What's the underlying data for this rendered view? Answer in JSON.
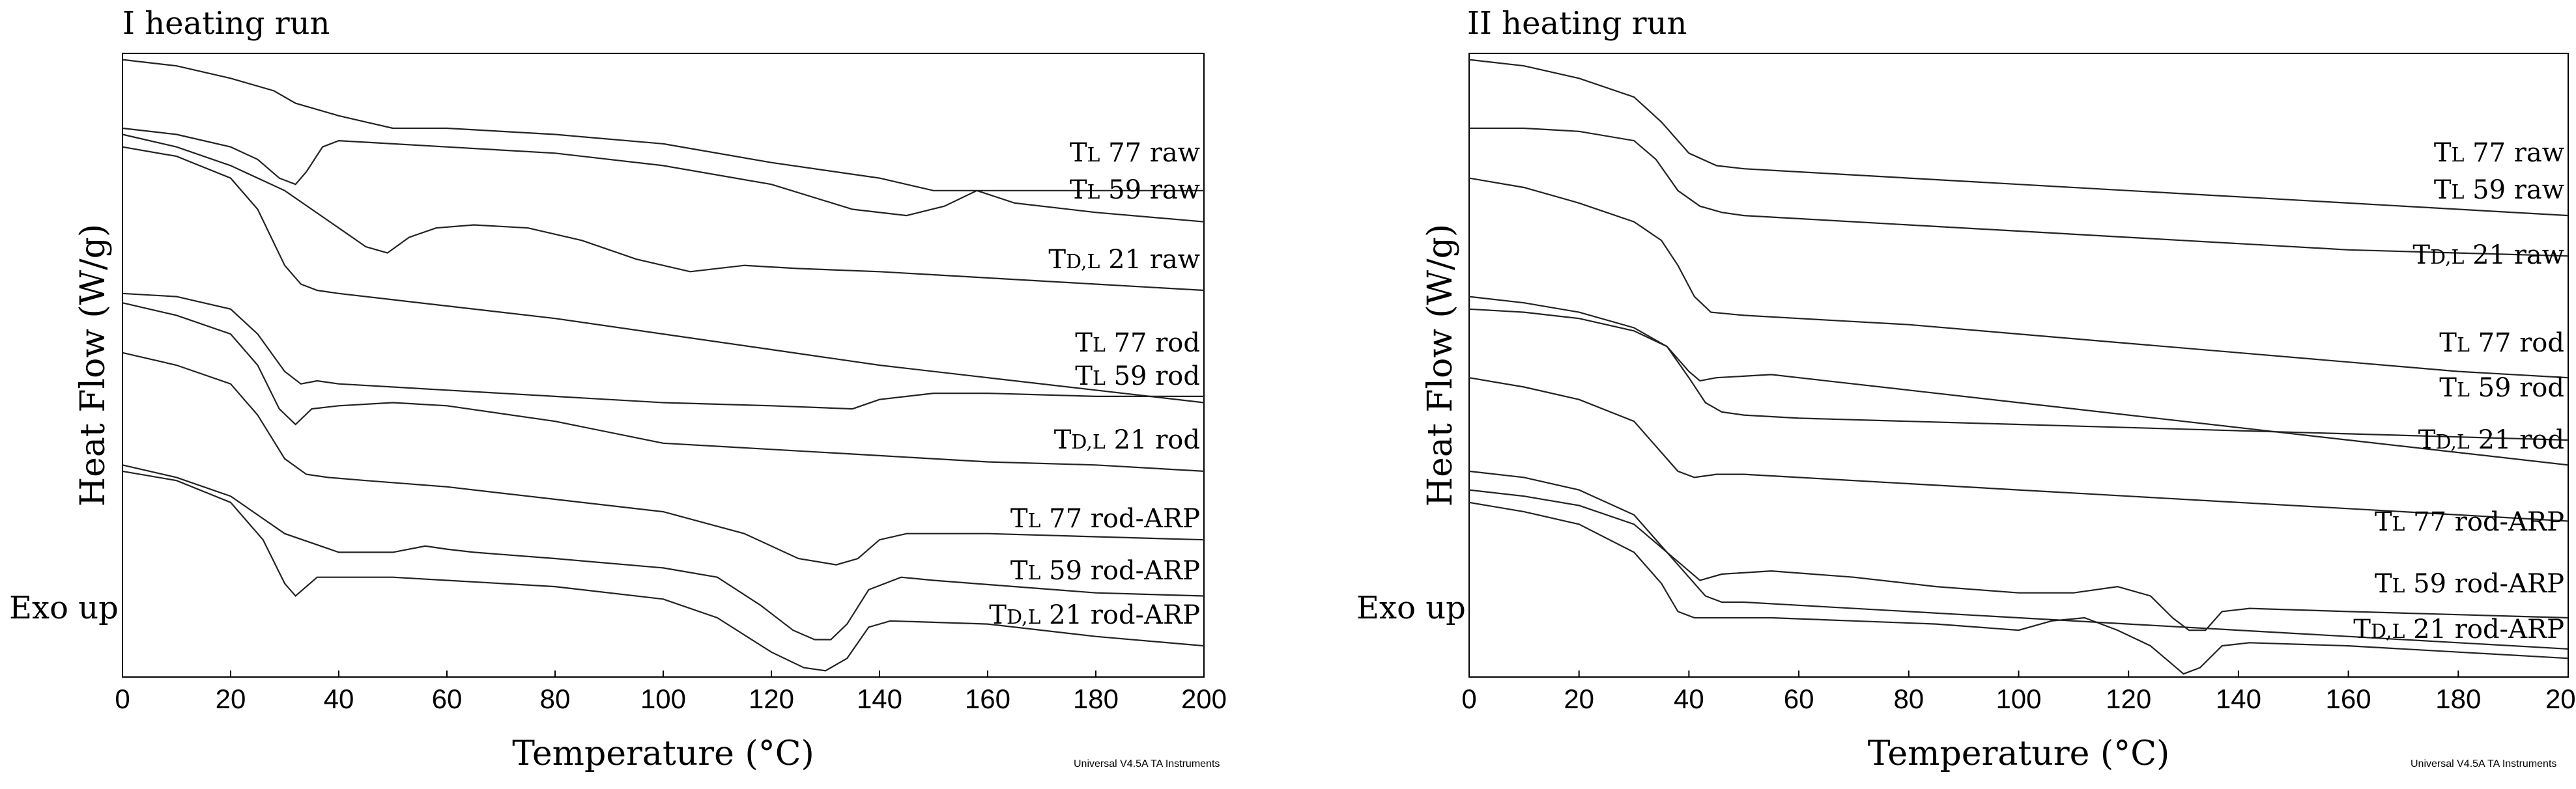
{
  "chart_data": [
    {
      "type": "line",
      "title": "I heating run",
      "xlabel": "Temperature (°C)",
      "ylabel": "Heat Flow (W/g)",
      "annotation": "Exo up",
      "footer": "Universal V4.5A TA Instruments",
      "xlim": [
        0,
        200
      ],
      "ylim": [
        0,
        10
      ],
      "xticks": [
        0,
        20,
        40,
        60,
        80,
        100,
        120,
        140,
        160,
        180,
        200
      ],
      "series": [
        {
          "name": "TL 77 raw",
          "label_main": "T",
          "label_sub": "L",
          "label_rest": " 77 raw",
          "x": [
            0,
            10,
            20,
            28,
            32,
            36,
            40,
            45,
            50,
            60,
            80,
            100,
            120,
            140,
            150,
            160,
            180,
            200
          ],
          "y": [
            9.9,
            9.8,
            9.6,
            9.4,
            9.2,
            9.1,
            9.0,
            8.9,
            8.8,
            8.8,
            8.7,
            8.55,
            8.25,
            8.0,
            7.8,
            7.8,
            7.8,
            7.8
          ]
        },
        {
          "name": "TL 59 raw",
          "label_main": "T",
          "label_sub": "L",
          "label_rest": " 59 raw",
          "x": [
            0,
            10,
            20,
            25,
            29,
            32,
            34,
            37,
            40,
            50,
            60,
            80,
            100,
            120,
            135,
            145,
            152,
            158,
            165,
            180,
            200
          ],
          "y": [
            8.8,
            8.7,
            8.5,
            8.3,
            8.0,
            7.9,
            8.1,
            8.5,
            8.6,
            8.55,
            8.5,
            8.4,
            8.2,
            7.9,
            7.5,
            7.4,
            7.55,
            7.8,
            7.6,
            7.45,
            7.3
          ]
        },
        {
          "name": "TD,L 21 raw",
          "label_main": "T",
          "label_sub": "D,L",
          "label_rest": " 21 raw",
          "x": [
            0,
            10,
            20,
            30,
            40,
            45,
            49,
            53,
            58,
            65,
            75,
            85,
            95,
            105,
            115,
            125,
            140,
            160,
            180,
            200
          ],
          "y": [
            8.7,
            8.5,
            8.2,
            7.8,
            7.2,
            6.9,
            6.8,
            7.05,
            7.2,
            7.25,
            7.2,
            7.0,
            6.7,
            6.5,
            6.6,
            6.55,
            6.5,
            6.4,
            6.3,
            6.2
          ]
        },
        {
          "name": "TL 77 rod",
          "label_main": "T",
          "label_sub": "L",
          "label_rest": " 77 rod",
          "x": [
            0,
            10,
            20,
            25,
            30,
            33,
            36,
            40,
            50,
            60,
            80,
            100,
            120,
            140,
            160,
            180,
            200
          ],
          "y": [
            8.5,
            8.35,
            8.0,
            7.5,
            6.6,
            6.3,
            6.2,
            6.15,
            6.05,
            5.95,
            5.75,
            5.5,
            5.25,
            5.0,
            4.8,
            4.6,
            4.4
          ]
        },
        {
          "name": "TL 59 rod",
          "label_main": "T",
          "label_sub": "L",
          "label_rest": " 59 rod",
          "x": [
            0,
            10,
            20,
            25,
            30,
            33,
            36,
            40,
            60,
            80,
            100,
            120,
            135,
            140,
            150,
            160,
            180,
            200
          ],
          "y": [
            6.15,
            6.1,
            5.9,
            5.5,
            4.9,
            4.7,
            4.75,
            4.7,
            4.6,
            4.5,
            4.4,
            4.35,
            4.3,
            4.45,
            4.55,
            4.55,
            4.5,
            4.5
          ]
        },
        {
          "name": "TD,L 21 rod",
          "label_main": "T",
          "label_sub": "D,L",
          "label_rest": " 21 rod",
          "x": [
            0,
            10,
            20,
            25,
            29,
            32,
            35,
            40,
            50,
            60,
            80,
            100,
            120,
            140,
            160,
            180,
            200
          ],
          "y": [
            6.0,
            5.8,
            5.5,
            5.0,
            4.3,
            4.05,
            4.3,
            4.35,
            4.4,
            4.35,
            4.1,
            3.75,
            3.65,
            3.55,
            3.45,
            3.4,
            3.3
          ]
        },
        {
          "name": "TL 77 rod-ARP",
          "label_main": "T",
          "label_sub": "L",
          "label_rest": " 77 rod-ARP",
          "x": [
            0,
            10,
            20,
            25,
            30,
            34,
            38,
            45,
            60,
            80,
            100,
            115,
            125,
            132,
            136,
            140,
            145,
            160,
            180,
            200
          ],
          "y": [
            5.2,
            5.0,
            4.7,
            4.2,
            3.5,
            3.25,
            3.2,
            3.15,
            3.05,
            2.85,
            2.65,
            2.3,
            1.9,
            1.8,
            1.9,
            2.2,
            2.3,
            2.3,
            2.25,
            2.2
          ]
        },
        {
          "name": "TL 59 rod-ARP",
          "label_main": "T",
          "label_sub": "L",
          "label_rest": " 59 rod-ARP",
          "x": [
            0,
            10,
            20,
            30,
            40,
            50,
            56,
            60,
            65,
            80,
            100,
            110,
            118,
            124,
            128,
            131,
            134,
            138,
            144,
            150,
            165,
            180,
            200
          ],
          "y": [
            3.4,
            3.2,
            2.9,
            2.3,
            2.0,
            2.0,
            2.1,
            2.05,
            2.0,
            1.9,
            1.75,
            1.6,
            1.15,
            0.75,
            0.6,
            0.6,
            0.85,
            1.4,
            1.6,
            1.55,
            1.45,
            1.35,
            1.3
          ]
        },
        {
          "name": "TD,L 21 rod-ARP",
          "label_main": "T",
          "label_sub": "D,L",
          "label_rest": " 21 rod-ARP",
          "x": [
            0,
            10,
            20,
            26,
            30,
            32,
            36,
            40,
            50,
            60,
            80,
            100,
            110,
            120,
            126,
            130,
            134,
            138,
            142,
            160,
            180,
            200
          ],
          "y": [
            3.3,
            3.15,
            2.8,
            2.2,
            1.5,
            1.3,
            1.6,
            1.6,
            1.6,
            1.55,
            1.45,
            1.25,
            0.95,
            0.4,
            0.15,
            0.1,
            0.3,
            0.8,
            0.9,
            0.85,
            0.65,
            0.5
          ]
        }
      ]
    },
    {
      "type": "line",
      "title": "II heating run",
      "xlabel": "Temperature (°C)",
      "ylabel": "Heat Flow (W/g)",
      "annotation": "Exo up",
      "footer": "Universal V4.5A TA Instruments",
      "xlim": [
        0,
        200
      ],
      "ylim": [
        0,
        10
      ],
      "xticks": [
        0,
        20,
        40,
        60,
        80,
        100,
        120,
        140,
        160,
        180,
        200
      ],
      "series": [
        {
          "name": "TL 77 raw",
          "label_main": "T",
          "label_sub": "L",
          "label_rest": " 77 raw",
          "x": [
            0,
            10,
            20,
            30,
            35,
            40,
            45,
            50,
            60,
            80,
            100,
            120,
            140,
            160,
            180,
            200
          ],
          "y": [
            9.9,
            9.8,
            9.6,
            9.3,
            8.9,
            8.4,
            8.2,
            8.15,
            8.1,
            8.0,
            7.9,
            7.8,
            7.7,
            7.6,
            7.5,
            7.4
          ]
        },
        {
          "name": "TL 59 raw",
          "label_main": "T",
          "label_sub": "L",
          "label_rest": " 59 raw",
          "x": [
            0,
            10,
            20,
            30,
            34,
            38,
            42,
            46,
            50,
            60,
            80,
            100,
            120,
            140,
            160,
            180,
            200
          ],
          "y": [
            8.8,
            8.8,
            8.75,
            8.6,
            8.3,
            7.8,
            7.55,
            7.45,
            7.4,
            7.35,
            7.25,
            7.15,
            7.05,
            6.95,
            6.85,
            6.8,
            6.75
          ]
        },
        {
          "name": "TD,L 21 raw",
          "label_main": "T",
          "label_sub": "D,L",
          "label_rest": " 21 raw",
          "x": [
            0,
            10,
            20,
            30,
            35,
            38,
            41,
            44,
            50,
            60,
            80,
            100,
            120,
            140,
            160,
            180,
            200
          ],
          "y": [
            8.0,
            7.85,
            7.6,
            7.3,
            7.0,
            6.6,
            6.1,
            5.85,
            5.8,
            5.75,
            5.65,
            5.5,
            5.35,
            5.2,
            5.05,
            4.9,
            4.8
          ]
        },
        {
          "name": "TL 77 rod",
          "label_main": "T",
          "label_sub": "L",
          "label_rest": " 77 rod",
          "x": [
            0,
            10,
            20,
            30,
            36,
            40,
            42,
            45,
            55,
            60,
            80,
            100,
            120,
            140,
            160,
            180,
            200
          ],
          "y": [
            6.1,
            6.0,
            5.85,
            5.6,
            5.3,
            4.9,
            4.75,
            4.8,
            4.85,
            4.8,
            4.6,
            4.4,
            4.2,
            4.0,
            3.8,
            3.6,
            3.4
          ]
        },
        {
          "name": "TL 59 rod",
          "label_main": "T",
          "label_sub": "L",
          "label_rest": " 59 rod",
          "x": [
            0,
            10,
            20,
            30,
            36,
            40,
            43,
            46,
            50,
            60,
            80,
            100,
            120,
            140,
            160,
            180,
            200
          ],
          "y": [
            5.9,
            5.85,
            5.75,
            5.55,
            5.3,
            4.8,
            4.4,
            4.25,
            4.2,
            4.15,
            4.1,
            4.05,
            4.0,
            3.95,
            3.9,
            3.85,
            3.8
          ]
        },
        {
          "name": "TD,L 21 rod",
          "label_main": "T",
          "label_sub": "D,L",
          "label_rest": " 21 rod",
          "x": [
            0,
            10,
            20,
            30,
            35,
            38,
            41,
            45,
            50,
            60,
            80,
            100,
            120,
            140,
            160,
            180,
            200
          ],
          "y": [
            4.8,
            4.65,
            4.45,
            4.1,
            3.6,
            3.3,
            3.2,
            3.25,
            3.25,
            3.2,
            3.1,
            3.0,
            2.9,
            2.8,
            2.7,
            2.6,
            2.5
          ]
        },
        {
          "name": "TL 77 rod-ARP",
          "label_main": "T",
          "label_sub": "L",
          "label_rest": " 77 rod-ARP",
          "x": [
            0,
            10,
            20,
            30,
            36,
            40,
            42,
            46,
            55,
            70,
            85,
            100,
            110,
            118,
            124,
            128,
            131,
            134,
            137,
            142,
            160,
            180,
            200
          ],
          "y": [
            3.3,
            3.2,
            3.0,
            2.6,
            2.0,
            1.7,
            1.55,
            1.65,
            1.7,
            1.6,
            1.45,
            1.35,
            1.35,
            1.45,
            1.3,
            0.95,
            0.75,
            0.75,
            1.05,
            1.1,
            1.05,
            1.0,
            0.95
          ]
        },
        {
          "name": "TL 59 rod-ARP",
          "label_main": "T",
          "label_sub": "L",
          "label_rest": " 59 rod-ARP",
          "x": [
            0,
            10,
            20,
            30,
            36,
            40,
            43,
            46,
            50,
            60,
            80,
            100,
            120,
            140,
            160,
            180,
            200
          ],
          "y": [
            3.0,
            2.9,
            2.75,
            2.45,
            2.0,
            1.6,
            1.3,
            1.2,
            1.2,
            1.15,
            1.05,
            0.95,
            0.85,
            0.75,
            0.65,
            0.55,
            0.45
          ]
        },
        {
          "name": "TD,L 21 rod-ARP",
          "label_main": "T",
          "label_sub": "D,L",
          "label_rest": " 21 rod-ARP",
          "x": [
            0,
            10,
            20,
            30,
            35,
            38,
            41,
            45,
            55,
            70,
            85,
            100,
            106,
            112,
            118,
            124,
            128,
            130,
            133,
            137,
            142,
            160,
            180,
            200
          ],
          "y": [
            2.8,
            2.65,
            2.45,
            2.0,
            1.5,
            1.05,
            0.95,
            0.95,
            0.95,
            0.9,
            0.85,
            0.75,
            0.9,
            0.95,
            0.75,
            0.5,
            0.2,
            0.05,
            0.15,
            0.5,
            0.55,
            0.5,
            0.4,
            0.3
          ]
        }
      ]
    }
  ]
}
